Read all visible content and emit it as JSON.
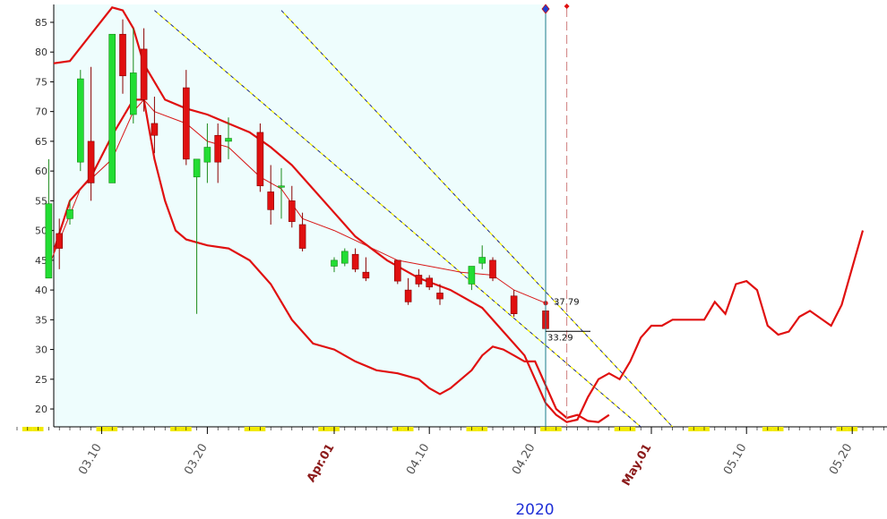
{
  "chart_data": {
    "type": "candlestick",
    "year": "2020",
    "ylim": [
      17,
      88
    ],
    "y_ticks": [
      20,
      25,
      30,
      35,
      40,
      45,
      50,
      55,
      60,
      65,
      70,
      75,
      80,
      85
    ],
    "x_axis_labels": [
      {
        "text": "03.10",
        "day": 8,
        "kind": "date"
      },
      {
        "text": "03.20",
        "day": 18,
        "kind": "date"
      },
      {
        "text": "Apr.01",
        "day": 30,
        "kind": "month"
      },
      {
        "text": "04.10",
        "day": 39,
        "kind": "date"
      },
      {
        "text": "04.20",
        "day": 49,
        "kind": "date"
      },
      {
        "text": "May.01",
        "day": 60,
        "kind": "month"
      },
      {
        "text": "05.10",
        "day": 69,
        "kind": "date"
      },
      {
        "text": "05.20",
        "day": 79,
        "kind": "date"
      }
    ],
    "candles": [
      {
        "day": 3,
        "open": 42,
        "high": 62,
        "low": 42,
        "close": 54.5
      },
      {
        "day": 4,
        "open": 49.5,
        "high": 52,
        "low": 43.5,
        "close": 47
      },
      {
        "day": 5,
        "open": 52,
        "high": 55,
        "low": 51,
        "close": 53.5
      },
      {
        "day": 6,
        "open": 61.5,
        "high": 77,
        "low": 60,
        "close": 75.5
      },
      {
        "day": 7,
        "open": 65,
        "high": 77.5,
        "low": 55,
        "close": 58
      },
      {
        "day": 9,
        "open": 58,
        "high": 83,
        "low": 58,
        "close": 83
      },
      {
        "day": 10,
        "open": 83,
        "high": 85.5,
        "low": 73,
        "close": 76
      },
      {
        "day": 11,
        "open": 69.5,
        "high": 84,
        "low": 68,
        "close": 76.5
      },
      {
        "day": 12,
        "open": 80.5,
        "high": 84,
        "low": 70,
        "close": 72
      },
      {
        "day": 13,
        "open": 68,
        "high": 72.5,
        "low": 63,
        "close": 66
      },
      {
        "day": 16,
        "open": 74,
        "high": 77,
        "low": 61,
        "close": 62
      },
      {
        "day": 17,
        "open": 59,
        "high": 62,
        "low": 36,
        "close": 62
      },
      {
        "day": 18,
        "open": 61.5,
        "high": 68,
        "low": 58,
        "close": 64
      },
      {
        "day": 19,
        "open": 66,
        "high": 68,
        "low": 58,
        "close": 61.5
      },
      {
        "day": 20,
        "open": 65,
        "high": 69,
        "low": 62,
        "close": 65.5
      },
      {
        "day": 23,
        "open": 66.5,
        "high": 68,
        "low": 56.5,
        "close": 57.5
      },
      {
        "day": 24,
        "open": 56.5,
        "high": 61,
        "low": 51,
        "close": 53.5
      },
      {
        "day": 25,
        "open": 57.5,
        "high": 60.5,
        "low": 52,
        "close": 57.5
      },
      {
        "day": 26,
        "open": 55,
        "high": 57.5,
        "low": 50.5,
        "close": 51.5
      },
      {
        "day": 27,
        "open": 51,
        "high": 53,
        "low": 46.5,
        "close": 47
      },
      {
        "day": 30,
        "open": 44,
        "high": 45.5,
        "low": 43,
        "close": 45
      },
      {
        "day": 31,
        "open": 44.5,
        "high": 47,
        "low": 44,
        "close": 46.5
      },
      {
        "day": 32,
        "open": 46,
        "high": 47,
        "low": 43,
        "close": 43.5
      },
      {
        "day": 33,
        "open": 43,
        "high": 45.5,
        "low": 41.5,
        "close": 42
      },
      {
        "day": 36,
        "open": 45,
        "high": 45,
        "low": 41,
        "close": 41.5
      },
      {
        "day": 37,
        "open": 40,
        "high": 42,
        "low": 37.5,
        "close": 38
      },
      {
        "day": 38,
        "open": 42.5,
        "high": 43.5,
        "low": 40.5,
        "close": 41
      },
      {
        "day": 39,
        "open": 42,
        "high": 42.5,
        "low": 40,
        "close": 40.5
      },
      {
        "day": 40,
        "open": 39.5,
        "high": 41,
        "low": 37.5,
        "close": 38.5
      },
      {
        "day": 43,
        "open": 41,
        "high": 44,
        "low": 40,
        "close": 44
      },
      {
        "day": 44,
        "open": 44.5,
        "high": 47.5,
        "low": 43.5,
        "close": 45.5
      },
      {
        "day": 45,
        "open": 45,
        "high": 45.5,
        "low": 41.5,
        "close": 42
      },
      {
        "day": 47,
        "open": 39,
        "high": 40,
        "low": 35.5,
        "close": 36
      },
      {
        "day": 50,
        "open": 36.5,
        "high": 37.5,
        "low": 33,
        "close": 33.5
      }
    ],
    "moving_average": [
      [
        3,
        44
      ],
      [
        6,
        57
      ],
      [
        9,
        62
      ],
      [
        11,
        70
      ],
      [
        12,
        72
      ],
      [
        13,
        70
      ],
      [
        16,
        68
      ],
      [
        18,
        65
      ],
      [
        20,
        64
      ],
      [
        23,
        59
      ],
      [
        25,
        57
      ],
      [
        27,
        52
      ],
      [
        30,
        50
      ],
      [
        33,
        47.5
      ],
      [
        36,
        45
      ],
      [
        39,
        44
      ],
      [
        42,
        43
      ],
      [
        45,
        42.5
      ],
      [
        47,
        40
      ],
      [
        50,
        37.8
      ]
    ],
    "band_upper": [
      [
        0,
        77.5
      ],
      [
        1,
        78.5
      ],
      [
        3,
        78
      ],
      [
        5,
        78.5
      ],
      [
        7,
        83
      ],
      [
        9,
        87.5
      ],
      [
        10,
        87
      ],
      [
        11,
        84
      ],
      [
        12,
        78
      ],
      [
        14,
        72
      ],
      [
        16,
        70.5
      ],
      [
        18,
        69.5
      ],
      [
        20,
        68
      ],
      [
        22,
        66.5
      ],
      [
        24,
        64
      ],
      [
        26,
        61
      ],
      [
        28,
        57
      ],
      [
        30,
        53
      ],
      [
        32,
        49
      ],
      [
        35,
        45
      ],
      [
        38,
        42
      ],
      [
        41,
        40
      ],
      [
        44,
        37
      ],
      [
        46,
        33
      ],
      [
        48,
        29
      ],
      [
        49,
        25
      ],
      [
        50,
        21
      ],
      [
        51,
        19
      ],
      [
        52,
        17.8
      ],
      [
        53,
        18.2
      ],
      [
        54,
        22
      ],
      [
        55,
        25
      ],
      [
        56,
        26
      ],
      [
        57,
        25
      ],
      [
        58,
        28
      ],
      [
        59,
        32
      ],
      [
        60,
        34
      ],
      [
        61,
        34
      ],
      [
        62,
        35
      ],
      [
        64,
        35
      ],
      [
        65,
        35
      ],
      [
        66,
        38
      ],
      [
        67,
        36
      ],
      [
        68,
        41
      ],
      [
        69,
        41.5
      ],
      [
        70,
        40
      ],
      [
        71,
        34
      ],
      [
        72,
        32.5
      ],
      [
        73,
        33
      ],
      [
        74,
        35.5
      ],
      [
        75,
        36.5
      ],
      [
        77,
        34
      ],
      [
        78,
        37.5
      ],
      [
        80,
        50
      ]
    ],
    "band_lower": [
      [
        3,
        44
      ],
      [
        5,
        55
      ],
      [
        7,
        59
      ],
      [
        9,
        66
      ],
      [
        11,
        72
      ],
      [
        12,
        72
      ],
      [
        13,
        62
      ],
      [
        14,
        55
      ],
      [
        15,
        50
      ],
      [
        16,
        48.5
      ],
      [
        18,
        47.5
      ],
      [
        20,
        47
      ],
      [
        22,
        45
      ],
      [
        24,
        41
      ],
      [
        26,
        35
      ],
      [
        28,
        31
      ],
      [
        30,
        30
      ],
      [
        32,
        28
      ],
      [
        34,
        26.5
      ],
      [
        36,
        26
      ],
      [
        38,
        25
      ],
      [
        39,
        23.5
      ],
      [
        40,
        22.5
      ],
      [
        41,
        23.5
      ],
      [
        43,
        26.5
      ],
      [
        44,
        29
      ],
      [
        45,
        30.5
      ],
      [
        46,
        30
      ],
      [
        47,
        29
      ],
      [
        48,
        28
      ],
      [
        49,
        28
      ],
      [
        50,
        24
      ],
      [
        51,
        20
      ],
      [
        52,
        18.5
      ],
      [
        53,
        19
      ],
      [
        54,
        18
      ],
      [
        55,
        17.8
      ],
      [
        56,
        19
      ]
    ],
    "trendlines": [
      {
        "style": "dash",
        "start": [
          13,
          87
        ],
        "end": [
          59,
          17
        ]
      },
      {
        "style": "dash",
        "start": [
          25,
          87
        ],
        "end": [
          62,
          17
        ]
      }
    ],
    "last_close_label": "33.29",
    "ma_value_label": "37.79",
    "today_marker_day": 50,
    "future_marker_day": 52,
    "future_start_day": 50
  }
}
